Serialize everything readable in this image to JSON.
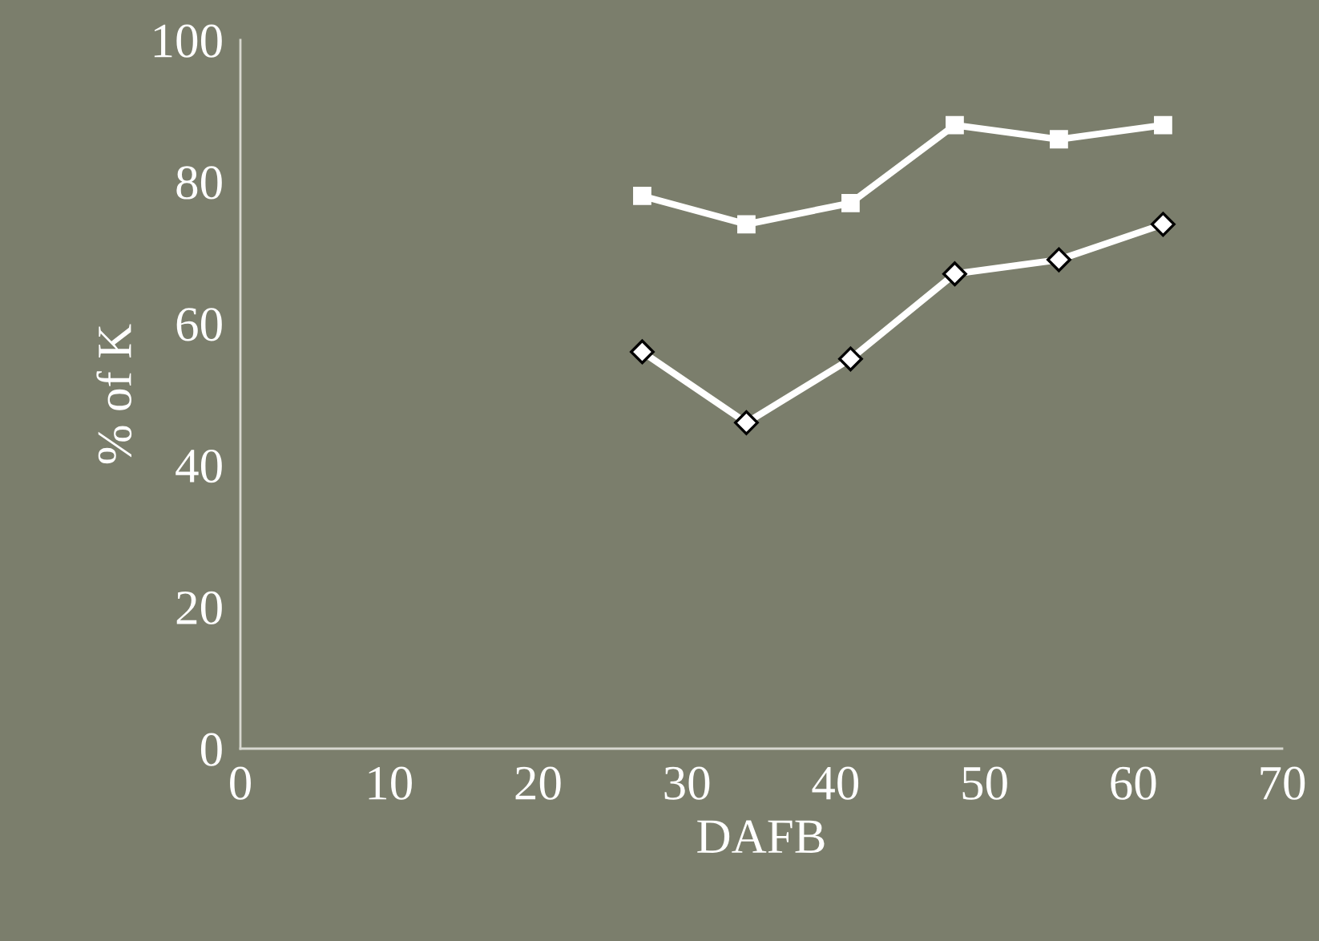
{
  "chart_data": {
    "type": "line",
    "xlabel": "DAFB",
    "ylabel": "% of K",
    "x": [
      27,
      34,
      41,
      48,
      55,
      62
    ],
    "series": [
      {
        "color": "#ffffff",
        "marker": "square",
        "values": [
          78,
          74,
          77,
          88,
          86,
          88
        ]
      },
      {
        "color": "#ffffff",
        "marker": "diamond",
        "values": [
          56,
          46,
          55,
          67,
          69,
          74
        ]
      }
    ],
    "xlim": [
      0,
      70
    ],
    "xticks": [
      0,
      10,
      20,
      30,
      40,
      50,
      60,
      70
    ],
    "ylim": [
      0,
      100
    ],
    "yticks": [
      0,
      20,
      40,
      60,
      80,
      100
    ],
    "grid": false,
    "legend": false,
    "line_style": "solid"
  }
}
